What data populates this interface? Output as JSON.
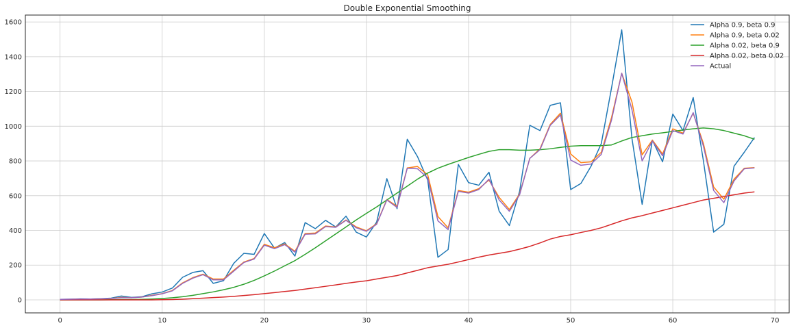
{
  "chart_data": {
    "type": "line",
    "title": "Double Exponential Smoothing",
    "xlabel": "",
    "ylabel": "",
    "xlim": [
      -3.4,
      71.4
    ],
    "ylim": [
      -75,
      1640
    ],
    "xticks": [
      0,
      10,
      20,
      30,
      40,
      50,
      60,
      70
    ],
    "yticks": [
      0,
      200,
      400,
      600,
      800,
      1000,
      1200,
      1400,
      1600
    ],
    "grid": true,
    "legend_position": "top-right",
    "x": [
      0,
      1,
      2,
      3,
      4,
      5,
      6,
      7,
      8,
      9,
      10,
      11,
      12,
      13,
      14,
      15,
      16,
      17,
      18,
      19,
      20,
      21,
      22,
      23,
      24,
      25,
      26,
      27,
      28,
      29,
      30,
      31,
      32,
      33,
      34,
      35,
      36,
      37,
      38,
      39,
      40,
      41,
      42,
      43,
      44,
      45,
      46,
      47,
      48,
      49,
      50,
      51,
      52,
      53,
      54,
      55,
      56,
      57,
      58,
      59,
      60,
      61,
      62,
      63,
      64,
      65,
      66,
      67,
      68
    ],
    "series": [
      {
        "name": "Alpha 0.9, beta 0.9",
        "color": "#1f77b4",
        "values": [
          3,
          4,
          6,
          5,
          7,
          10,
          22,
          14,
          18,
          35,
          45,
          68,
          130,
          158,
          168,
          95,
          110,
          210,
          268,
          262,
          382,
          298,
          330,
          252,
          445,
          410,
          458,
          420,
          482,
          390,
          362,
          448,
          698,
          525,
          925,
          825,
          690,
          245,
          290,
          780,
          675,
          660,
          735,
          510,
          428,
          625,
          1005,
          975,
          1120,
          1135,
          635,
          670,
          770,
          900,
          1220,
          1555,
          930,
          550,
          920,
          795,
          1070,
          975,
          1165,
          800,
          390,
          435,
          770,
          850,
          935
        ]
      },
      {
        "name": "Alpha 0.9, beta 0.02",
        "color": "#ff7f0e",
        "values": [
          3,
          3,
          5,
          5,
          6,
          8,
          14,
          12,
          16,
          26,
          36,
          54,
          98,
          128,
          148,
          120,
          120,
          170,
          218,
          238,
          320,
          300,
          322,
          280,
          382,
          385,
          425,
          420,
          460,
          420,
          398,
          438,
          578,
          538,
          760,
          768,
          720,
          480,
          415,
          630,
          620,
          640,
          690,
          590,
          520,
          610,
          815,
          870,
          1010,
          1075,
          840,
          790,
          795,
          850,
          1050,
          1305,
          1140,
          835,
          920,
          840,
          985,
          960,
          1075,
          900,
          650,
          580,
          695,
          758,
          762
        ]
      },
      {
        "name": "Alpha 0.02, beta 0.9",
        "color": "#2ca02c",
        "values": [
          0,
          0,
          0,
          0,
          0,
          1,
          2,
          2,
          3,
          5,
          8,
          12,
          18,
          26,
          36,
          46,
          58,
          72,
          90,
          112,
          138,
          166,
          196,
          226,
          262,
          300,
          340,
          380,
          420,
          460,
          498,
          535,
          575,
          615,
          655,
          695,
          730,
          758,
          780,
          800,
          820,
          838,
          855,
          865,
          865,
          862,
          862,
          865,
          870,
          878,
          885,
          888,
          888,
          888,
          892,
          915,
          935,
          945,
          955,
          962,
          970,
          978,
          985,
          990,
          985,
          975,
          960,
          945,
          925
        ]
      },
      {
        "name": "Alpha 0.02, beta 0.02",
        "color": "#d62728",
        "values": [
          0,
          0,
          0,
          0,
          0,
          0,
          0,
          0,
          0,
          0,
          1,
          2,
          4,
          7,
          10,
          13,
          16,
          20,
          25,
          30,
          36,
          42,
          48,
          54,
          62,
          70,
          78,
          86,
          95,
          103,
          110,
          120,
          130,
          140,
          155,
          170,
          185,
          195,
          205,
          218,
          232,
          246,
          258,
          268,
          278,
          292,
          308,
          328,
          350,
          365,
          375,
          388,
          400,
          415,
          435,
          455,
          472,
          485,
          500,
          515,
          530,
          545,
          560,
          575,
          585,
          595,
          605,
          615,
          622
        ]
      },
      {
        "name": "Actual",
        "color": "#9467bd",
        "values": [
          3,
          4,
          5,
          5,
          6,
          8,
          12,
          12,
          16,
          24,
          35,
          52,
          95,
          125,
          145,
          115,
          115,
          165,
          215,
          235,
          315,
          295,
          318,
          275,
          378,
          380,
          422,
          418,
          458,
          415,
          395,
          435,
          575,
          532,
          758,
          755,
          702,
          455,
          405,
          625,
          615,
          635,
          695,
          575,
          510,
          605,
          815,
          865,
          1005,
          1065,
          805,
          775,
          782,
          838,
          1035,
          1305,
          1095,
          800,
          915,
          830,
          975,
          955,
          1078,
          885,
          630,
          560,
          685,
          755,
          760
        ]
      }
    ]
  }
}
